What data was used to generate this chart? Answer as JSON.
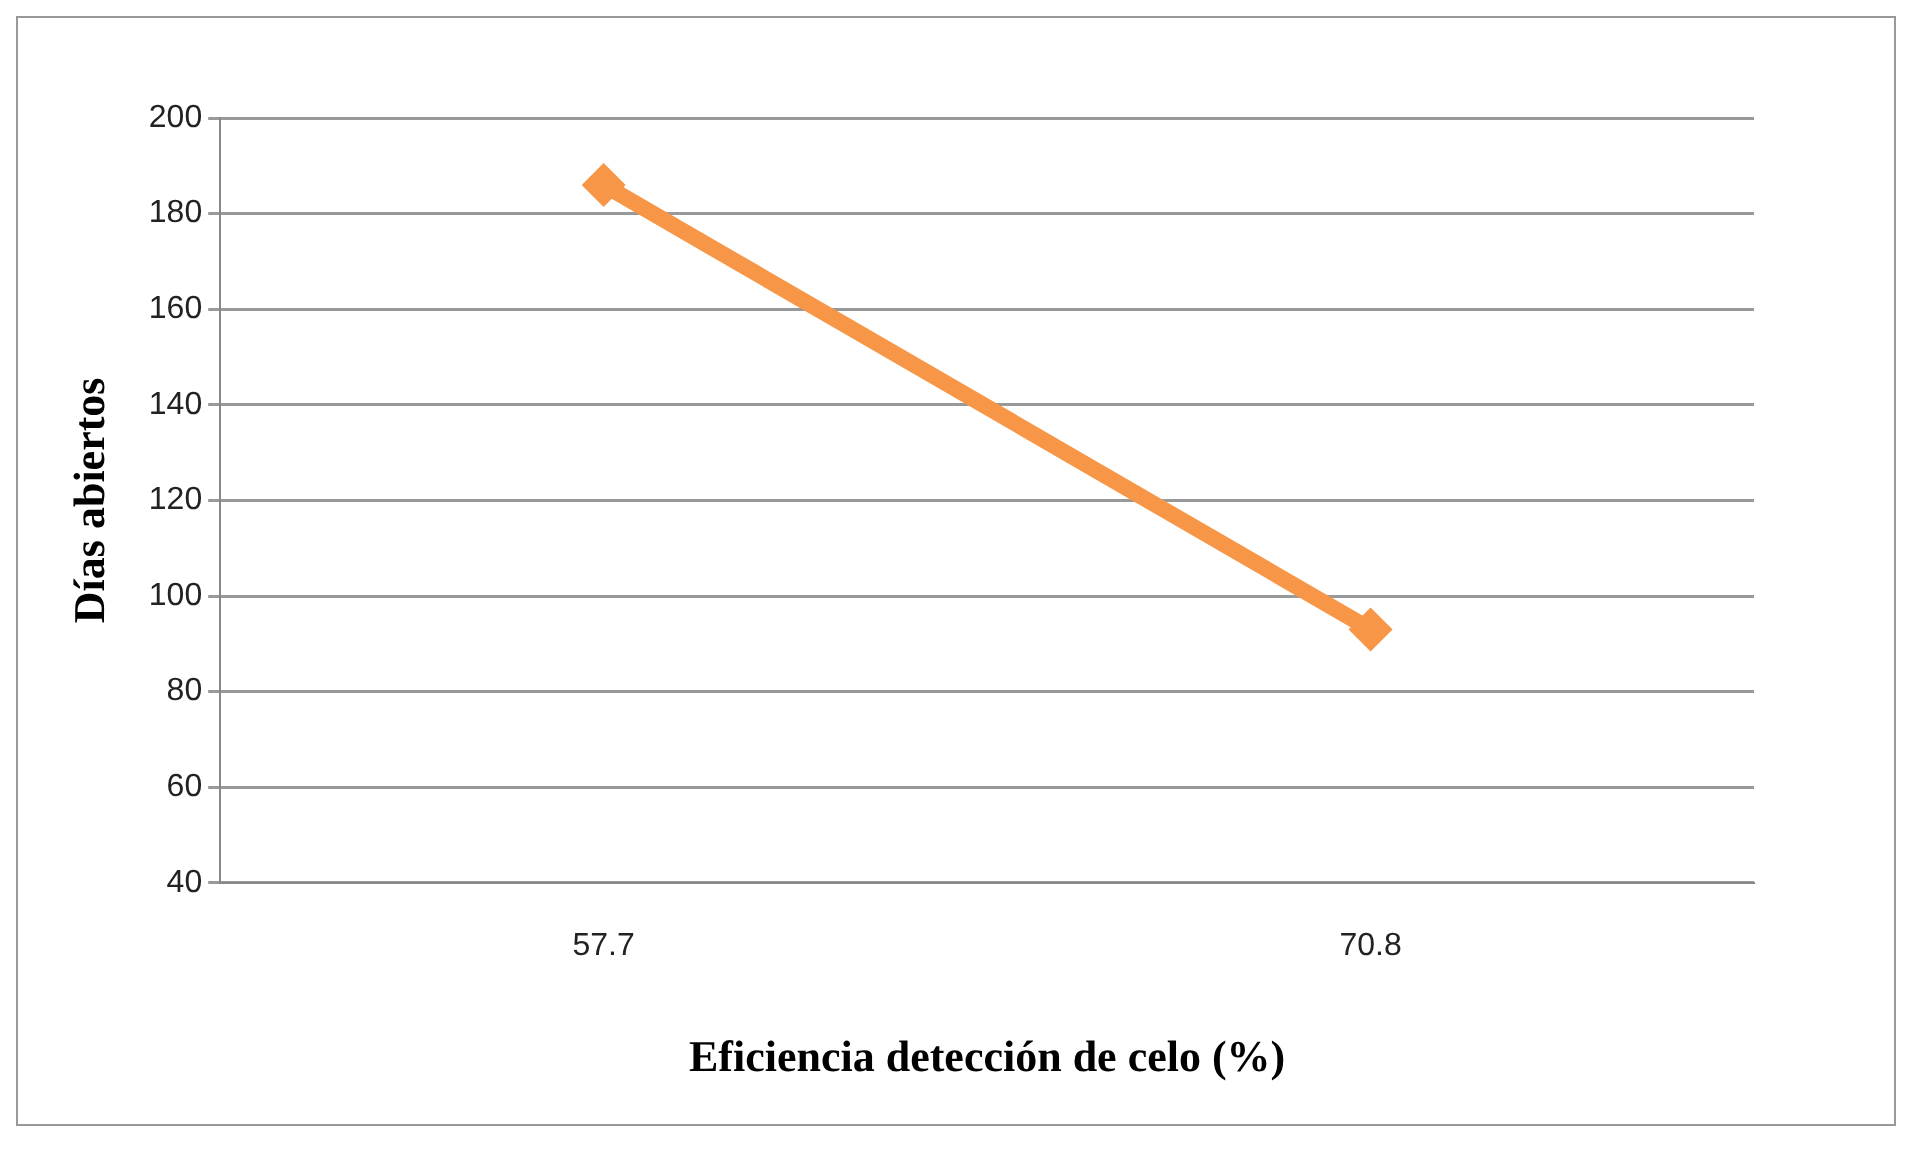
{
  "chart_data": {
    "type": "line",
    "xlabel": "Eficiencia detección de celo (%)",
    "ylabel": "Días abiertos",
    "categories": [
      "57.7",
      "70.8"
    ],
    "series": [
      {
        "color": "#f79646",
        "values": [
          186,
          93
        ]
      }
    ],
    "ylim": [
      40,
      200
    ],
    "yticks": [
      40,
      60,
      80,
      100,
      120,
      140,
      160,
      180,
      200
    ],
    "grid": "y",
    "legend": false,
    "marker": "diamond",
    "line_style": "solid"
  }
}
